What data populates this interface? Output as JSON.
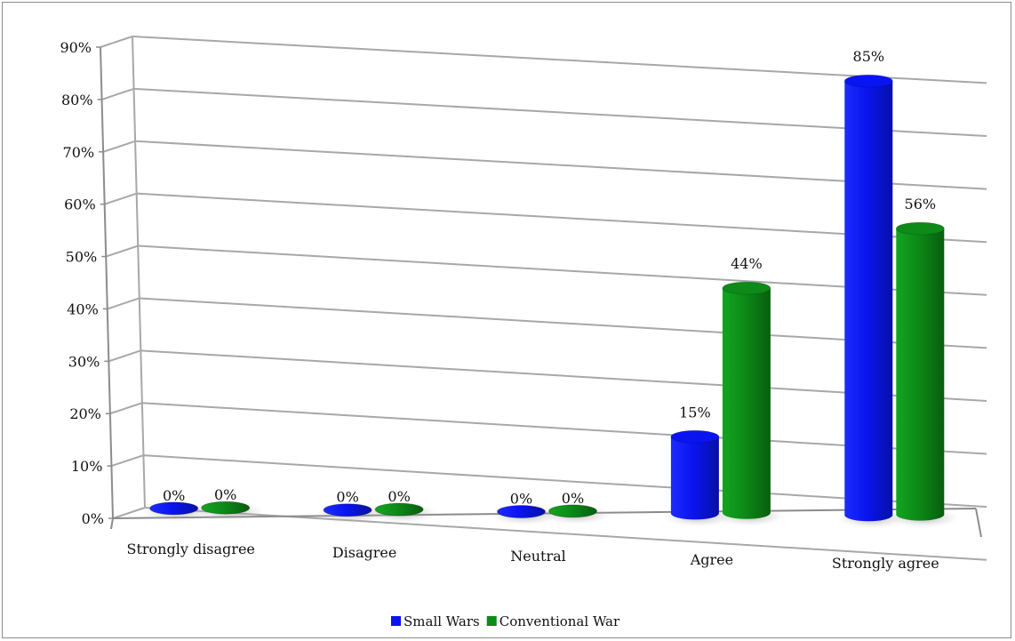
{
  "chart_data": {
    "type": "bar",
    "categories": [
      "Strongly disagree",
      "Disagree",
      "Neutral",
      "Agree",
      "Strongly agree"
    ],
    "series": [
      {
        "name": "Small Wars",
        "values": [
          0,
          0,
          0,
          15,
          85
        ],
        "labels": [
          "0%",
          "0%",
          "0%",
          "15%",
          "85%"
        ],
        "color": "#0a14f0"
      },
      {
        "name": "Conventional War",
        "values": [
          0,
          0,
          0,
          44,
          56
        ],
        "labels": [
          "0%",
          "0%",
          "0%",
          "44%",
          "56%"
        ],
        "color": "#0d8a17"
      }
    ],
    "y_ticks": [
      "0%",
      "10%",
      "20%",
      "30%",
      "40%",
      "50%",
      "60%",
      "70%",
      "80%",
      "90%"
    ],
    "ylim": [
      0,
      90
    ],
    "grid": true,
    "three_d": true,
    "legend_position": "bottom"
  }
}
